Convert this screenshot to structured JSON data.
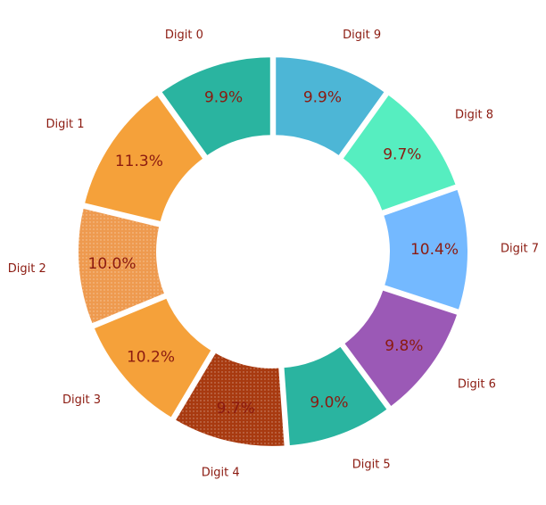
{
  "chart_data": {
    "type": "pie",
    "donut": true,
    "title": "",
    "legend": "none",
    "start": "top, clockwise",
    "slices": [
      {
        "label": "Digit 9",
        "value": 9.9,
        "value_label": "9.9%",
        "color": "#4db6d6",
        "hatch": false
      },
      {
        "label": "Digit 8",
        "value": 9.7,
        "value_label": "9.7%",
        "color": "#56eec0",
        "hatch": false
      },
      {
        "label": "Digit 7",
        "value": 10.4,
        "value_label": "10.4%",
        "color": "#74b9ff",
        "hatch": false
      },
      {
        "label": "Digit 6",
        "value": 9.8,
        "value_label": "9.8%",
        "color": "#9b59b6",
        "hatch": false
      },
      {
        "label": "Digit 5",
        "value": 9.0,
        "value_label": "9.0%",
        "color": "#2ab4a0",
        "hatch": false
      },
      {
        "label": "Digit 4",
        "value": 9.7,
        "value_label": "9.7%",
        "color": "#a83a10",
        "hatch": true
      },
      {
        "label": "Digit 3",
        "value": 10.2,
        "value_label": "10.2%",
        "color": "#f5a13a",
        "hatch": false
      },
      {
        "label": "Digit 2",
        "value": 10.0,
        "value_label": "10.0%",
        "color": "#ee9a4f",
        "hatch": true
      },
      {
        "label": "Digit 1",
        "value": 11.3,
        "value_label": "11.3%",
        "color": "#f5a13a",
        "hatch": false
      },
      {
        "label": "Digit 0",
        "value": 9.9,
        "value_label": "9.9%",
        "color": "#2ab4a0",
        "hatch": false
      }
    ]
  }
}
